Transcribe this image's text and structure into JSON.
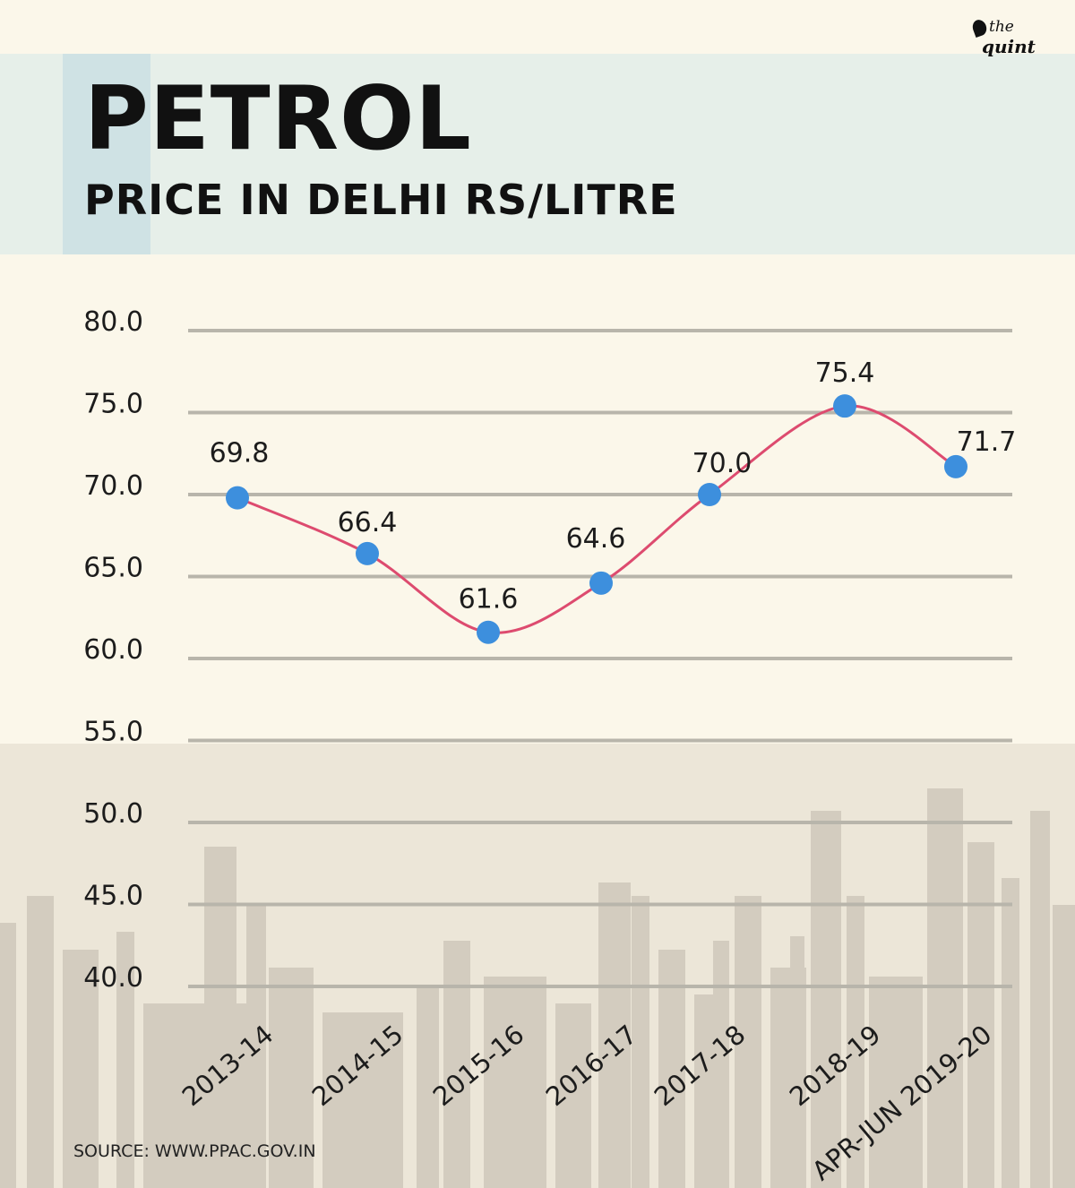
{
  "brand": {
    "the": "the",
    "quint": "quint"
  },
  "header": {
    "title": "PETROL",
    "subtitle": "PRICE IN DELHI RS/LITRE"
  },
  "source": "SOURCE: WWW.PPAC.GOV.IN",
  "colors": {
    "background": "#fbf7ea",
    "header_band": "#e6efe9",
    "line": "#dd4b6f",
    "marker": "#3d8fdd",
    "grid": "#b8b5ab",
    "skyline": "#d3ccbf"
  },
  "chart_data": {
    "type": "line",
    "title": "PETROL",
    "subtitle": "PRICE IN DELHI RS/LITRE",
    "categories": [
      "2013-14",
      "2014-15",
      "2015-16",
      "2016-17",
      "2017-18",
      "2018-19",
      "APR-JUN 2019-20"
    ],
    "series": [
      {
        "values": [
          69.8,
          66.4,
          61.6,
          64.6,
          70.0,
          75.4,
          71.7
        ],
        "labels": [
          "69.8",
          "66.4",
          "61.6",
          "64.6",
          "70.0",
          "75.4",
          "71.7"
        ]
      }
    ],
    "y_ticks": [
      "80.0",
      "75.0",
      "70.0",
      "65.0",
      "60.0",
      "55.0",
      "50.0",
      "45.0",
      "40.0"
    ],
    "ylim": [
      40,
      80
    ],
    "grid": true,
    "smooth": true
  }
}
